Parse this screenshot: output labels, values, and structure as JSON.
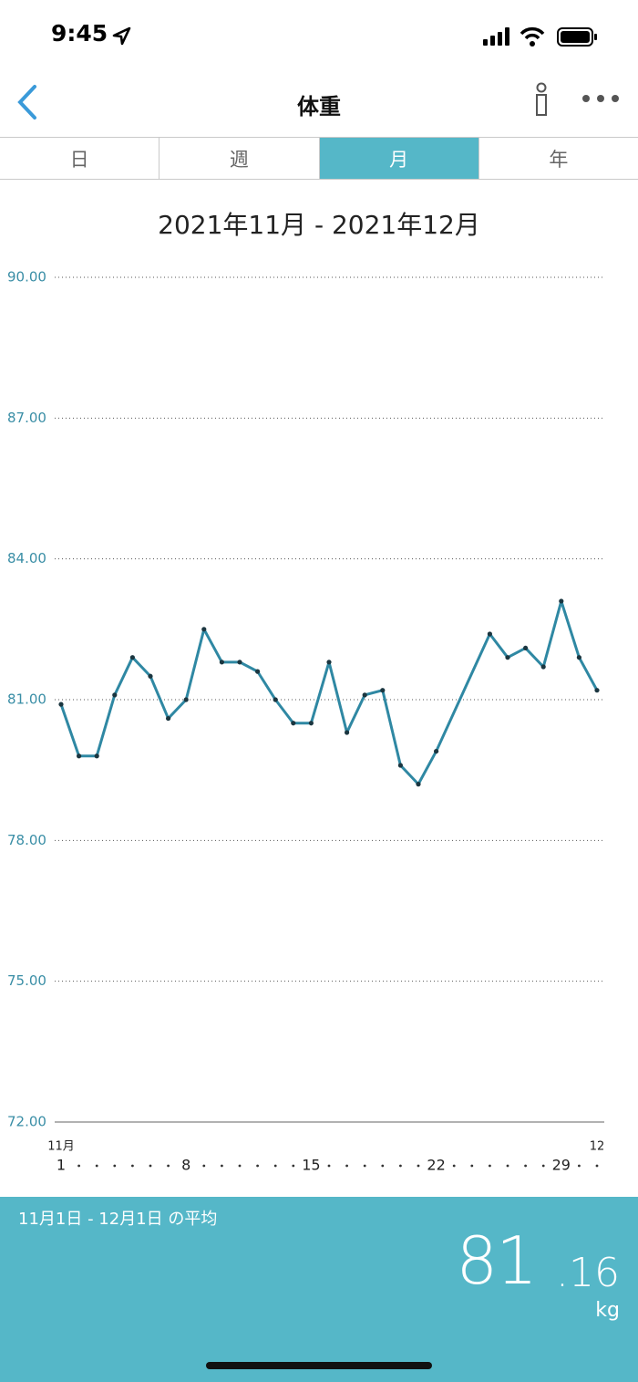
{
  "status_bar": {
    "time": "9:45"
  },
  "nav": {
    "title": "体重"
  },
  "tabs": {
    "items": [
      "日",
      "週",
      "月",
      "年"
    ],
    "selected": 2
  },
  "chart_data": {
    "type": "line",
    "title": "2021年11月 - 2021年12月",
    "x": [
      1,
      2,
      3,
      4,
      5,
      6,
      7,
      8,
      9,
      10,
      11,
      12,
      13,
      14,
      15,
      16,
      17,
      18,
      19,
      20,
      21,
      22,
      25,
      26,
      27,
      28,
      29,
      30,
      31
    ],
    "values": [
      80.9,
      79.8,
      79.8,
      81.1,
      81.9,
      81.5,
      80.6,
      81.0,
      82.5,
      81.8,
      81.8,
      81.6,
      81.0,
      80.5,
      80.5,
      81.8,
      80.3,
      81.1,
      81.2,
      79.6,
      79.2,
      79.9,
      82.4,
      81.9,
      82.1,
      81.7,
      83.1,
      81.9,
      81.2
    ],
    "color": "#2f88a3",
    "xlim": [
      1,
      31
    ],
    "xticks": [
      1,
      8,
      15,
      22,
      29
    ],
    "xtick_month_labels": [
      {
        "value": 1,
        "label": "11月"
      },
      {
        "value": 31,
        "label": "12"
      }
    ],
    "ylim": [
      72,
      90
    ],
    "yticks": [
      {
        "value": 72,
        "label": "72.00"
      },
      {
        "value": 75,
        "label": "75.00"
      },
      {
        "value": 78,
        "label": "78.00"
      },
      {
        "value": 81,
        "label": "81.00"
      },
      {
        "value": 84,
        "label": "84.00"
      },
      {
        "value": 87,
        "label": "87.00"
      },
      {
        "value": 90,
        "label": "90.00"
      }
    ],
    "grid": true
  },
  "summary": {
    "label": "11月1日 - 12月1日 の平均",
    "average_integer": "81",
    "average_fraction": ".16",
    "unit": "kg"
  }
}
